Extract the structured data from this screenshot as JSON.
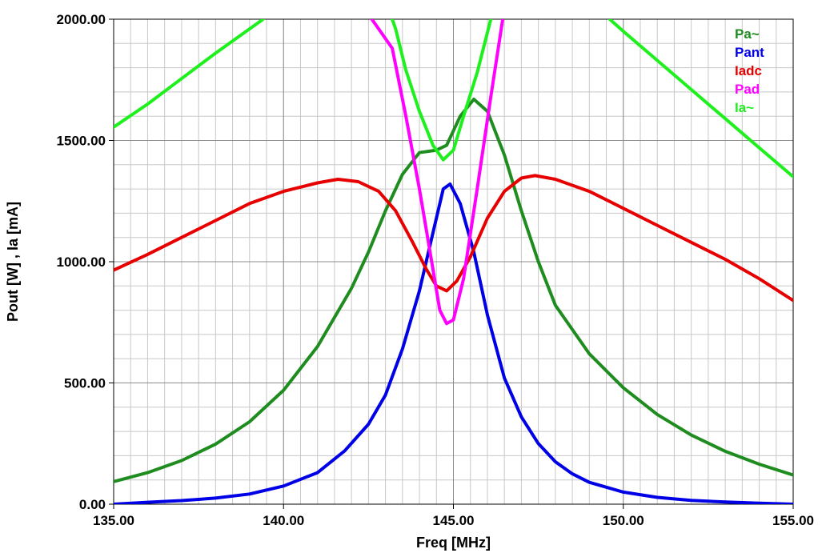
{
  "chart_data": {
    "type": "line",
    "xlabel": "Freq [MHz]",
    "ylabel": "Pout [W] , Ia [mA]",
    "xlim": [
      135,
      155
    ],
    "ylim": [
      0,
      2000
    ],
    "x_ticks": [
      "135.00",
      "140.00",
      "145.00",
      "150.00",
      "155.00"
    ],
    "y_ticks": [
      "0.00",
      "500.00",
      "1000.00",
      "1500.00",
      "2000.00"
    ],
    "x_minor_step": 0.5,
    "y_minor_step": 100,
    "grid": true,
    "legend_position": "top-right",
    "series": [
      {
        "name": "Pa~",
        "color": "#1e8c1e",
        "points": [
          [
            135.0,
            93
          ],
          [
            136.0,
            130
          ],
          [
            137.0,
            180
          ],
          [
            138.0,
            248
          ],
          [
            139.0,
            340
          ],
          [
            140.0,
            470
          ],
          [
            141.0,
            650
          ],
          [
            142.0,
            890
          ],
          [
            142.5,
            1040
          ],
          [
            143.0,
            1210
          ],
          [
            143.5,
            1360
          ],
          [
            144.0,
            1450
          ],
          [
            144.5,
            1460
          ],
          [
            144.8,
            1480
          ],
          [
            145.2,
            1600
          ],
          [
            145.6,
            1670
          ],
          [
            146.0,
            1620
          ],
          [
            146.5,
            1440
          ],
          [
            147.0,
            1210
          ],
          [
            147.5,
            1000
          ],
          [
            148.0,
            820
          ],
          [
            149.0,
            620
          ],
          [
            150.0,
            480
          ],
          [
            151.0,
            370
          ],
          [
            152.0,
            285
          ],
          [
            153.0,
            218
          ],
          [
            154.0,
            165
          ],
          [
            155.0,
            120
          ]
        ]
      },
      {
        "name": "Pant",
        "color": "#0000e6",
        "points": [
          [
            135.0,
            0
          ],
          [
            136.0,
            8
          ],
          [
            137.0,
            15
          ],
          [
            138.0,
            25
          ],
          [
            139.0,
            42
          ],
          [
            140.0,
            75
          ],
          [
            141.0,
            130
          ],
          [
            141.8,
            220
          ],
          [
            142.5,
            330
          ],
          [
            143.0,
            450
          ],
          [
            143.5,
            640
          ],
          [
            144.0,
            880
          ],
          [
            144.4,
            1120
          ],
          [
            144.7,
            1300
          ],
          [
            144.9,
            1320
          ],
          [
            145.2,
            1240
          ],
          [
            145.6,
            1040
          ],
          [
            146.0,
            780
          ],
          [
            146.5,
            520
          ],
          [
            147.0,
            360
          ],
          [
            147.5,
            250
          ],
          [
            148.0,
            175
          ],
          [
            148.5,
            125
          ],
          [
            149.0,
            90
          ],
          [
            150.0,
            50
          ],
          [
            151.0,
            28
          ],
          [
            152.0,
            16
          ],
          [
            153.0,
            9
          ],
          [
            154.0,
            4
          ],
          [
            155.0,
            0
          ]
        ]
      },
      {
        "name": "Iadc",
        "color": "#e60000",
        "points": [
          [
            135.0,
            965
          ],
          [
            136.0,
            1030
          ],
          [
            137.0,
            1100
          ],
          [
            138.0,
            1170
          ],
          [
            139.0,
            1240
          ],
          [
            140.0,
            1290
          ],
          [
            141.0,
            1325
          ],
          [
            141.6,
            1340
          ],
          [
            142.2,
            1330
          ],
          [
            142.8,
            1290
          ],
          [
            143.3,
            1210
          ],
          [
            143.8,
            1080
          ],
          [
            144.2,
            970
          ],
          [
            144.5,
            900
          ],
          [
            144.8,
            880
          ],
          [
            145.1,
            920
          ],
          [
            145.5,
            1020
          ],
          [
            146.0,
            1180
          ],
          [
            146.5,
            1290
          ],
          [
            147.0,
            1345
          ],
          [
            147.4,
            1355
          ],
          [
            148.0,
            1340
          ],
          [
            149.0,
            1290
          ],
          [
            150.0,
            1220
          ],
          [
            151.0,
            1150
          ],
          [
            152.0,
            1080
          ],
          [
            153.0,
            1010
          ],
          [
            154.0,
            930
          ],
          [
            155.0,
            840
          ]
        ]
      },
      {
        "name": "Pad",
        "color": "#ff00ff",
        "points": [
          [
            142.6,
            2000
          ],
          [
            143.2,
            1880
          ],
          [
            143.6,
            1600
          ],
          [
            144.0,
            1300
          ],
          [
            144.3,
            1050
          ],
          [
            144.6,
            800
          ],
          [
            144.8,
            745
          ],
          [
            145.0,
            760
          ],
          [
            145.3,
            930
          ],
          [
            145.7,
            1300
          ],
          [
            146.1,
            1680
          ],
          [
            146.45,
            2000
          ]
        ]
      },
      {
        "name": "Ia~",
        "color": "#1ef01e",
        "segments": [
          [
            [
              135.0,
              1555
            ],
            [
              136.0,
              1650
            ],
            [
              137.0,
              1755
            ],
            [
              138.0,
              1860
            ],
            [
              139.0,
              1960
            ],
            [
              139.4,
              2000
            ]
          ],
          [
            [
              143.2,
              2000
            ],
            [
              143.3,
              1960
            ],
            [
              143.6,
              1790
            ],
            [
              144.0,
              1620
            ],
            [
              144.4,
              1480
            ],
            [
              144.7,
              1420
            ],
            [
              145.0,
              1460
            ],
            [
              145.3,
              1600
            ],
            [
              145.7,
              1780
            ],
            [
              146.1,
              2000
            ]
          ],
          [
            [
              149.6,
              2000
            ],
            [
              150.0,
              1950
            ],
            [
              151.0,
              1830
            ],
            [
              152.0,
              1710
            ],
            [
              153.0,
              1590
            ],
            [
              154.0,
              1470
            ],
            [
              155.0,
              1350
            ]
          ]
        ]
      }
    ]
  }
}
